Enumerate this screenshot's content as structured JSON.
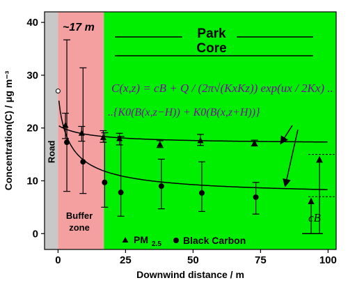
{
  "chart_data": {
    "type": "scatter",
    "xlabel": "Downwind distance / m",
    "ylabel": "Concentration(C) / μg m⁻³",
    "xlim": [
      -5,
      103
    ],
    "ylim": [
      -3,
      42
    ],
    "x_ticks": [
      "0",
      "25",
      "50",
      "75",
      "100"
    ],
    "y_ticks": [
      "0",
      "10",
      "20",
      "30",
      "40"
    ],
    "zones": {
      "road": {
        "label": "Road",
        "x_range": [
          -5,
          0
        ],
        "color": "#c8c8c8"
      },
      "buffer": {
        "label_top": "~17 m",
        "label": "Buffer zone",
        "x_range": [
          0,
          17
        ],
        "color": "#f4a0a0"
      },
      "park": {
        "label": "Park Core",
        "x_range": [
          17,
          103
        ],
        "color": "#00ee00"
      }
    },
    "equation": {
      "line1": "C(x,z) = cB + Q / (2π√(KxKz)) exp(ux / 2Kx) ..",
      "line2": "..{K0(B(x,z−H)) + K0(B(x,z+H))}"
    },
    "cb_label": "cB",
    "series": [
      {
        "name": "PM 2.5",
        "marker": "triangle",
        "x": [
          3,
          9,
          17,
          23,
          38,
          53,
          73
        ],
        "y": [
          20.5,
          19.0,
          18.2,
          18.0,
          16.9,
          17.6,
          17.1
        ],
        "yerr_low": [
          18.0,
          17.5,
          17.3,
          16.8,
          16.3,
          16.7,
          16.6
        ],
        "yerr_high": [
          22.8,
          20.3,
          19.5,
          19.0,
          17.6,
          18.8,
          17.7
        ],
        "fit": {
          "cb": 17.0,
          "a": 3.5,
          "b": 0.5
        },
        "fit_color": "#000000"
      },
      {
        "name": "Black Carbon",
        "marker": "circle",
        "x": [
          3,
          9,
          17,
          23,
          38,
          53,
          73
        ],
        "y": [
          17.3,
          13.6,
          9.7,
          7.8,
          9.0,
          7.7,
          6.9
        ],
        "yerr_low": [
          8.0,
          7.6,
          5.0,
          3.3,
          4.7,
          4.2,
          3.7
        ],
        "yerr_high": [
          36.7,
          31.4,
          19.1,
          18.4,
          14.1,
          13.6,
          9.7
        ],
        "fit": {
          "cb": 7.0,
          "a": 20.0,
          "b": 0.55
        },
        "fit_color": "#000000"
      }
    ],
    "road_point": {
      "x": 0,
      "y": 27.0
    },
    "legend": [
      {
        "marker": "triangle",
        "label": "PM",
        "sub": "2.5"
      },
      {
        "marker": "circle",
        "label": "Black Carbon"
      }
    ]
  }
}
